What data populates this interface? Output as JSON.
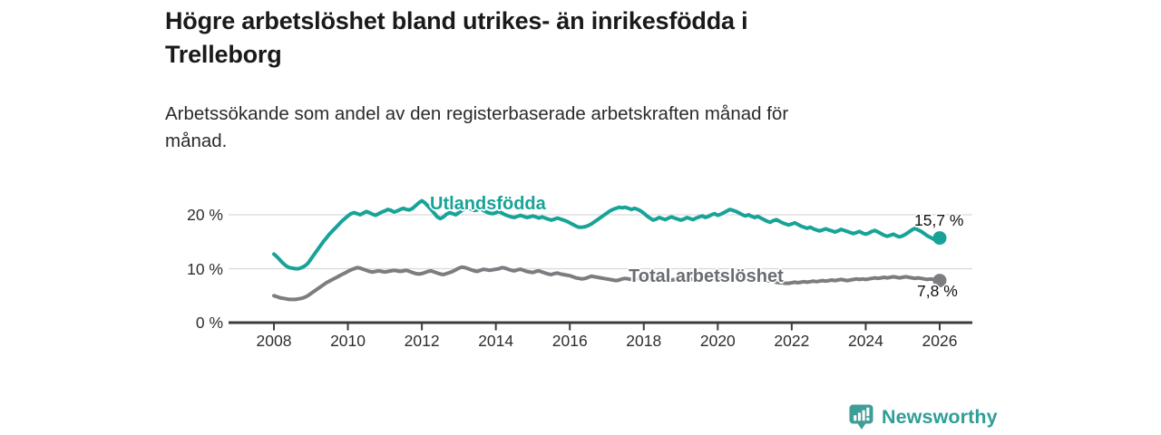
{
  "header": {
    "title_line1": "Högre arbetslöshet bland utrikes- än inrikesfödda i",
    "title_line2": "Trelleborg",
    "subtitle_line1": "Arbetssökande som andel av den registerbaserade arbetskraften månad för",
    "subtitle_line2": "månad."
  },
  "chart_data": {
    "type": "line",
    "title": "Högre arbetslöshet bland utrikes- än inrikesfödda i Trelleborg",
    "subtitle": "Arbetssökande som andel av den registerbaserade arbetskraften månad för månad.",
    "x_start_year": 2008,
    "x_step_months": 1,
    "x_ticks": [
      2008,
      2010,
      2012,
      2014,
      2016,
      2018,
      2020,
      2022,
      2024,
      2026
    ],
    "y_ticks": [
      {
        "value": 20,
        "label": "20 %"
      },
      {
        "value": 10,
        "label": "10 %"
      },
      {
        "value": 0,
        "label": "0 %"
      }
    ],
    "ylim": [
      0,
      24
    ],
    "xlim": [
      2006.8,
      2026.9
    ],
    "grid": "horizontal",
    "legend_position": "inline-labels",
    "colors": {
      "accent_teal": "#17a398",
      "line_gray": "#7c7d81",
      "axis": "#3c3c3c",
      "grid": "#d9d9d9"
    },
    "series": [
      {
        "name": "Utlandsfödda",
        "color": "#17a398",
        "label_color": "#17a398",
        "end_label": "15,7 %",
        "end_value": 15.7,
        "values": [
          12.7,
          12.2,
          11.6,
          11.0,
          10.5,
          10.2,
          10.1,
          10.0,
          10.0,
          10.2,
          10.5,
          11.0,
          11.8,
          12.6,
          13.4,
          14.2,
          15.0,
          15.7,
          16.4,
          17.0,
          17.6,
          18.2,
          18.8,
          19.3,
          19.8,
          20.2,
          20.4,
          20.2,
          20.0,
          20.3,
          20.6,
          20.4,
          20.1,
          19.9,
          20.2,
          20.5,
          20.7,
          21.0,
          20.8,
          20.5,
          20.7,
          21.0,
          21.2,
          21.0,
          20.9,
          21.2,
          21.7,
          22.2,
          22.6,
          22.2,
          21.6,
          21.0,
          20.3,
          19.6,
          19.3,
          19.6,
          20.1,
          20.4,
          20.2,
          20.0,
          20.4,
          20.8,
          21.2,
          21.4,
          21.1,
          20.8,
          20.9,
          21.1,
          20.8,
          20.5,
          20.3,
          20.2,
          20.4,
          20.6,
          20.3,
          20.0,
          19.8,
          19.6,
          19.5,
          19.7,
          19.9,
          19.7,
          19.5,
          19.6,
          19.8,
          19.6,
          19.4,
          19.6,
          19.4,
          19.2,
          19.0,
          19.2,
          19.4,
          19.2,
          19.0,
          18.8,
          18.5,
          18.2,
          17.9,
          17.7,
          17.7,
          17.8,
          18.0,
          18.3,
          18.7,
          19.1,
          19.5,
          19.9,
          20.3,
          20.7,
          21.0,
          21.2,
          21.4,
          21.3,
          21.4,
          21.2,
          21.0,
          21.2,
          21.0,
          20.7,
          20.3,
          19.8,
          19.4,
          19.0,
          19.2,
          19.5,
          19.3,
          19.1,
          19.4,
          19.6,
          19.4,
          19.2,
          19.0,
          19.2,
          19.5,
          19.3,
          19.1,
          19.4,
          19.6,
          19.8,
          19.5,
          19.7,
          20.0,
          20.2,
          19.9,
          20.1,
          20.4,
          20.7,
          21.0,
          20.8,
          20.6,
          20.3,
          20.0,
          19.8,
          20.0,
          19.7,
          19.5,
          19.7,
          19.4,
          19.1,
          18.8,
          18.6,
          18.9,
          19.1,
          18.8,
          18.5,
          18.3,
          18.1,
          18.3,
          18.5,
          18.2,
          17.9,
          17.7,
          17.5,
          17.7,
          17.4,
          17.2,
          17.0,
          17.2,
          17.4,
          17.2,
          17.0,
          16.8,
          17.0,
          17.3,
          17.1,
          16.9,
          16.7,
          16.5,
          16.7,
          16.9,
          16.6,
          16.4,
          16.6,
          16.9,
          17.1,
          16.8,
          16.5,
          16.2,
          16.0,
          16.2,
          16.4,
          16.1,
          15.9,
          16.1,
          16.4,
          16.8,
          17.2,
          17.5,
          17.2,
          16.9,
          16.5,
          16.1,
          15.8,
          15.5,
          15.4,
          15.7
        ]
      },
      {
        "name": "Total arbetslöshet",
        "color": "#7c7d81",
        "label_color": "#696c72",
        "end_label": "7,8 %",
        "end_value": 7.8,
        "values": [
          5.0,
          4.8,
          4.6,
          4.5,
          4.4,
          4.3,
          4.3,
          4.3,
          4.4,
          4.5,
          4.7,
          5.0,
          5.4,
          5.8,
          6.2,
          6.6,
          7.0,
          7.4,
          7.7,
          8.0,
          8.3,
          8.6,
          8.9,
          9.2,
          9.5,
          9.8,
          10.0,
          10.2,
          10.1,
          9.9,
          9.7,
          9.5,
          9.4,
          9.5,
          9.6,
          9.5,
          9.4,
          9.5,
          9.6,
          9.7,
          9.6,
          9.5,
          9.6,
          9.7,
          9.5,
          9.3,
          9.1,
          9.0,
          9.1,
          9.3,
          9.5,
          9.6,
          9.4,
          9.2,
          9.0,
          8.9,
          9.1,
          9.3,
          9.5,
          9.8,
          10.1,
          10.3,
          10.2,
          10.0,
          9.8,
          9.6,
          9.5,
          9.7,
          9.9,
          9.8,
          9.7,
          9.8,
          9.9,
          10.0,
          10.2,
          10.1,
          9.9,
          9.7,
          9.6,
          9.8,
          9.9,
          9.7,
          9.5,
          9.4,
          9.3,
          9.5,
          9.6,
          9.4,
          9.2,
          9.0,
          8.9,
          9.1,
          9.2,
          9.0,
          8.9,
          8.8,
          8.7,
          8.5,
          8.3,
          8.2,
          8.1,
          8.2,
          8.4,
          8.6,
          8.5,
          8.4,
          8.3,
          8.2,
          8.1,
          8.0,
          7.9,
          7.8,
          7.9,
          8.1,
          8.2,
          8.1,
          8.0,
          8.1,
          8.2,
          8.3,
          8.2,
          8.1,
          8.0,
          7.9,
          8.0,
          8.1,
          8.0,
          7.9,
          7.8,
          7.9,
          8.0,
          7.9,
          7.8,
          7.9,
          8.0,
          8.1,
          8.0,
          7.9,
          8.0,
          8.1,
          8.2,
          8.1,
          8.2,
          8.3,
          8.4,
          8.5,
          8.7,
          8.9,
          9.0,
          8.9,
          8.8,
          8.7,
          8.6,
          8.5,
          8.4,
          8.3,
          8.2,
          8.1,
          8.0,
          7.9,
          7.8,
          7.7,
          7.6,
          7.5,
          7.4,
          7.4,
          7.3,
          7.3,
          7.4,
          7.5,
          7.4,
          7.5,
          7.6,
          7.5,
          7.6,
          7.7,
          7.6,
          7.7,
          7.8,
          7.7,
          7.8,
          7.9,
          7.8,
          7.9,
          8.0,
          7.9,
          7.8,
          7.9,
          8.0,
          8.1,
          8.0,
          8.1,
          8.0,
          8.1,
          8.2,
          8.3,
          8.2,
          8.3,
          8.4,
          8.3,
          8.4,
          8.5,
          8.4,
          8.3,
          8.4,
          8.5,
          8.4,
          8.3,
          8.2,
          8.3,
          8.2,
          8.1,
          8.0,
          8.1,
          8.0,
          7.9,
          7.8
        ]
      }
    ]
  },
  "footer": {
    "brand": "Newsworthy",
    "brand_color": "#2f9e99",
    "logo_icon": "bar-chart-speech-bubble"
  }
}
